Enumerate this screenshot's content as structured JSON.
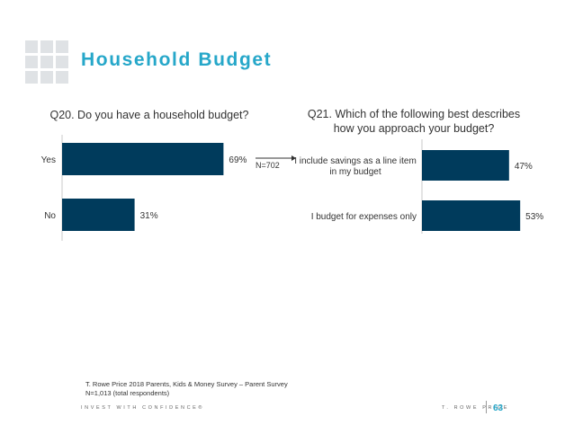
{
  "slide": {
    "title": "Household Budget",
    "accent_color": "#26a7c9",
    "bar_color": "#003b5c",
    "logo_icon": "grid-logo-icon"
  },
  "chart_data": [
    {
      "type": "bar",
      "orientation": "horizontal",
      "title": "Q20. Do you have a household budget?",
      "categories": [
        "Yes",
        "No"
      ],
      "values": [
        69,
        31
      ],
      "value_labels": [
        "69%",
        "31%"
      ],
      "xlim": [
        0,
        100
      ],
      "xlabel": "",
      "ylabel": "",
      "grid": false
    },
    {
      "type": "bar",
      "orientation": "horizontal",
      "title": "Q21. Which of the following best describes how you approach your budget?",
      "categories": [
        "I include savings as a line item in my budget",
        "I budget for expenses only"
      ],
      "category_lines": [
        [
          "I include savings as a line item",
          "in my budget"
        ],
        [
          "I budget for expenses only"
        ]
      ],
      "values": [
        47,
        53
      ],
      "value_labels": [
        "47%",
        "53%"
      ],
      "xlim": [
        0,
        100
      ],
      "xlabel": "",
      "ylabel": "",
      "grid": false
    }
  ],
  "flow": {
    "n_label": "N=702"
  },
  "footnote": {
    "line1": "T. Rowe Price 2018 Parents, Kids & Money Survey – Parent Survey",
    "line2": "N=1,013 (total respondents)"
  },
  "footer": {
    "tagline": "INVEST WITH CONFIDENCE®",
    "brand": "T. ROWE PRICE",
    "page_number": "63"
  }
}
